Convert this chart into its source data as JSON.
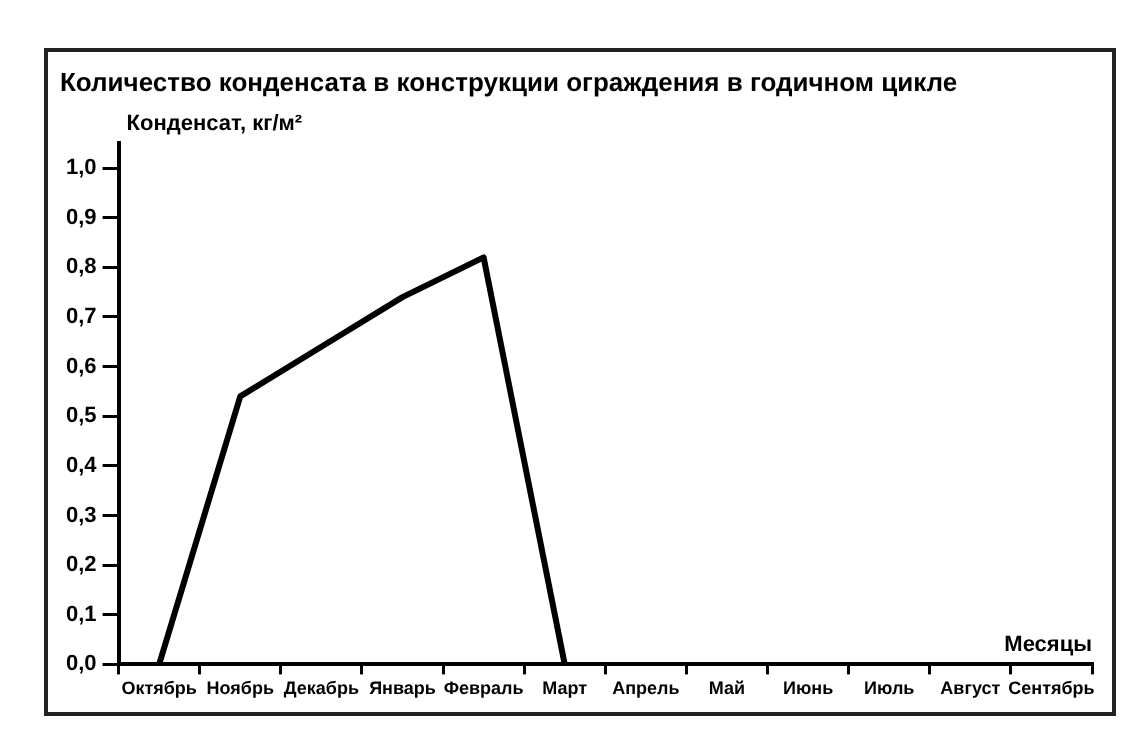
{
  "chart_data": {
    "type": "line",
    "title": "Количество конденсата в конструкции ограждения в годичном цикле",
    "xlabel": "Месяцы",
    "ylabel": "Конденсат, кг/м²",
    "categories": [
      "Октябрь",
      "Ноябрь",
      "Декабрь",
      "Январь",
      "Февраль",
      "Март",
      "Апрель",
      "Май",
      "Июнь",
      "Июль",
      "Август",
      "Сентябрь"
    ],
    "series": [
      {
        "color": "#000000",
        "values": [
          0,
          0.54,
          0.64,
          0.74,
          0.82,
          0,
          null,
          null,
          null,
          null,
          null,
          null
        ]
      }
    ],
    "ylim": [
      0,
      1.05
    ],
    "yticks": [
      {
        "value": 0,
        "label": "0,0"
      },
      {
        "value": 0.1,
        "label": "0,1"
      },
      {
        "value": 0.2,
        "label": "0,2"
      },
      {
        "value": 0.3,
        "label": "0,3"
      },
      {
        "value": 0.4,
        "label": "0,4"
      },
      {
        "value": 0.5,
        "label": "0,5"
      },
      {
        "value": 0.6,
        "label": "0,6"
      },
      {
        "value": 0.7,
        "label": "0,7"
      },
      {
        "value": 0.8,
        "label": "0,8"
      },
      {
        "value": 0.9,
        "label": "0,9"
      },
      {
        "value": 1,
        "label": "1,0"
      }
    ],
    "grid": false,
    "legend": false,
    "marker": "none",
    "line_style": "solid"
  }
}
